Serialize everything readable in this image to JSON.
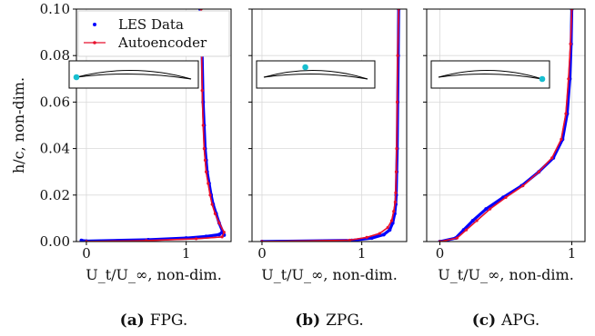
{
  "chart_data": [
    {
      "type": "line",
      "caption": "(a) FPG.",
      "xlabel": "U_t/U_∞, non-dim.",
      "ylabel": "h/c, non-dim.",
      "xlim": [
        -0.1,
        1.45
      ],
      "ylim": [
        0,
        0.1
      ],
      "xticks": [
        "0",
        "1"
      ],
      "yticks": [
        "0.00",
        "0.02",
        "0.04",
        "0.06",
        "0.08",
        "0.10"
      ],
      "grid": true,
      "legend": "top-left",
      "airfoil_marker_position": "leading edge",
      "series": [
        {
          "name": "LES Data",
          "color": "#0000ff",
          "style": "dots",
          "x": [
            -0.05,
            0.0,
            0.62,
            1.0,
            1.2,
            1.33,
            1.36,
            1.38,
            1.33,
            1.3,
            1.27,
            1.25,
            1.23,
            1.21,
            1.2,
            1.19,
            1.18,
            1.17,
            1.16,
            1.14
          ],
          "y": [
            0.0005,
            0.0002,
            0.0008,
            0.0015,
            0.0022,
            0.003,
            0.004,
            0.0028,
            0.008,
            0.012,
            0.016,
            0.02,
            0.025,
            0.03,
            0.035,
            0.04,
            0.05,
            0.06,
            0.08,
            0.1
          ]
        },
        {
          "name": "Autoencoder",
          "color": "#e8112d",
          "style": "line-dots",
          "x": [
            0.0,
            0.6,
            1.1,
            1.36,
            1.38,
            1.33,
            1.29,
            1.26,
            1.24,
            1.22,
            1.2,
            1.19,
            1.18,
            1.17,
            1.16,
            1.15
          ],
          "y": [
            0.0,
            0.0004,
            0.0012,
            0.002,
            0.004,
            0.008,
            0.012,
            0.016,
            0.02,
            0.025,
            0.03,
            0.035,
            0.04,
            0.05,
            0.065,
            0.1
          ]
        }
      ]
    },
    {
      "type": "line",
      "caption": "(b) ZPG.",
      "xlabel": "U_t/U_∞, non-dim.",
      "xlim": [
        -0.1,
        1.45
      ],
      "ylim": [
        0,
        0.1
      ],
      "xticks": [
        "0",
        "1"
      ],
      "grid": true,
      "airfoil_marker_position": "mid-chord",
      "series": [
        {
          "name": "LES Data",
          "color": "#0000ff",
          "style": "dots",
          "x": [
            0.0,
            0.9,
            1.1,
            1.22,
            1.28,
            1.31,
            1.33,
            1.34,
            1.345,
            1.35,
            1.355,
            1.36,
            1.365,
            1.37
          ],
          "y": [
            0.0,
            0.0005,
            0.0015,
            0.003,
            0.005,
            0.008,
            0.012,
            0.016,
            0.02,
            0.03,
            0.04,
            0.06,
            0.08,
            0.1
          ]
        },
        {
          "name": "Autoencoder",
          "color": "#e8112d",
          "style": "line-dots",
          "x": [
            0.0,
            0.88,
            1.05,
            1.18,
            1.26,
            1.3,
            1.32,
            1.335,
            1.34,
            1.345,
            1.35,
            1.355,
            1.36,
            1.37
          ],
          "y": [
            0.0,
            0.0006,
            0.0018,
            0.0035,
            0.006,
            0.009,
            0.013,
            0.017,
            0.021,
            0.03,
            0.04,
            0.06,
            0.08,
            0.1
          ]
        }
      ]
    },
    {
      "type": "line",
      "caption": "(c) APG.",
      "xlabel": "U_t/U_∞, non-dim.",
      "xlim": [
        -0.1,
        1.1
      ],
      "ylim": [
        0,
        0.1
      ],
      "xticks": [
        "0",
        "1"
      ],
      "grid": true,
      "airfoil_marker_position": "trailing edge",
      "series": [
        {
          "name": "LES Data",
          "color": "#0000ff",
          "style": "dots",
          "x": [
            0.0,
            0.12,
            0.18,
            0.25,
            0.35,
            0.48,
            0.62,
            0.75,
            0.86,
            0.93,
            0.965,
            0.985,
            0.995,
            1.0
          ],
          "y": [
            0.0,
            0.0015,
            0.005,
            0.009,
            0.014,
            0.019,
            0.024,
            0.03,
            0.036,
            0.044,
            0.055,
            0.07,
            0.085,
            0.1
          ]
        },
        {
          "name": "Autoencoder",
          "color": "#e8112d",
          "style": "line-dots",
          "x": [
            0.0,
            0.13,
            0.2,
            0.28,
            0.38,
            0.5,
            0.63,
            0.75,
            0.85,
            0.92,
            0.955,
            0.975,
            0.99,
            1.0
          ],
          "y": [
            0.0,
            0.0015,
            0.005,
            0.009,
            0.014,
            0.019,
            0.024,
            0.03,
            0.036,
            0.044,
            0.055,
            0.07,
            0.085,
            0.1
          ]
        }
      ]
    }
  ]
}
